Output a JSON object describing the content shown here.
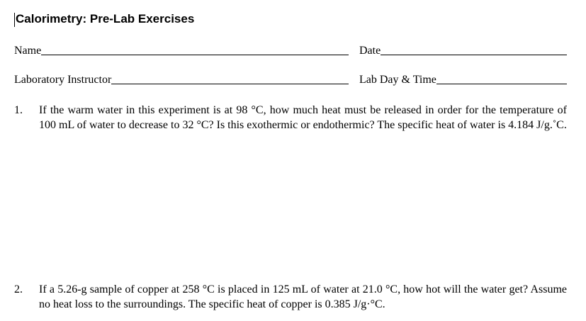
{
  "header": {
    "title": "Calorimetry:  Pre-Lab Exercises"
  },
  "fields": [
    {
      "label": "Name"
    },
    {
      "label": "Date"
    },
    {
      "label": "Laboratory Instructor"
    },
    {
      "label": "Lab Day & Time"
    }
  ],
  "questions": [
    {
      "number": "1.",
      "text": "If the warm water in this experiment is at 98 °C, how much heat must be released in order for the temperature of 100 mL of water to decrease to 32 °C? Is this exothermic or endothermic?  The specific heat of water is 4.184 J/g.˚C."
    },
    {
      "number": "2.",
      "text": "If a 5.26-g sample of copper at 258 °C is placed in 125 mL of water at 21.0 °C, how hot will the water get? Assume no heat loss to the surroundings. The specific heat of copper is 0.385 J/g·°C."
    }
  ]
}
